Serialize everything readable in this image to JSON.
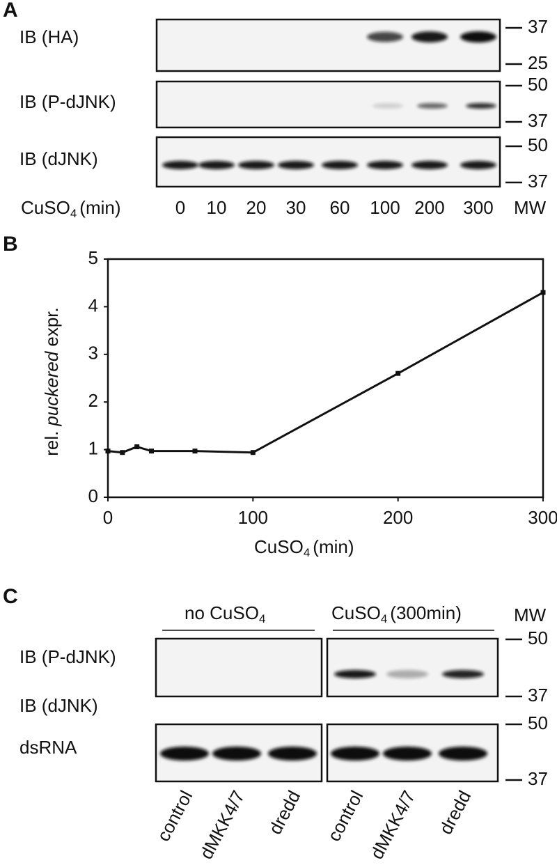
{
  "panel_a": {
    "letter": "A",
    "rows": [
      "IB (HA)",
      "IB (P-dJNK)",
      "IB (dJNK)"
    ],
    "x_label": [
      "CuSO",
      "4",
      "(min)"
    ],
    "lanes": [
      "0",
      "10",
      "20",
      "30",
      "60",
      "100",
      "200",
      "300"
    ],
    "mw_label": "MW",
    "mw_markers": [
      [
        "37",
        "25"
      ],
      [
        "50",
        "37"
      ],
      [
        "50",
        "37"
      ]
    ]
  },
  "chart_data": {
    "type": "line",
    "letter": "B",
    "x_label": [
      "CuSO",
      "4",
      "(min)"
    ],
    "y_label": [
      "rel.",
      "puckered",
      "expr."
    ],
    "x": [
      0,
      10,
      20,
      30,
      60,
      100,
      200,
      300
    ],
    "values": [
      0.97,
      0.94,
      1.06,
      0.97,
      0.97,
      0.94,
      2.6,
      4.3
    ],
    "color": "#111111",
    "xlim": [
      0,
      300
    ],
    "ylim": [
      0,
      5
    ],
    "xticks": [
      0,
      100,
      200,
      300
    ],
    "yticks": [
      0,
      1,
      2,
      3,
      4,
      5
    ]
  },
  "panel_c": {
    "letter": "C",
    "groups": [
      [
        "no CuSO",
        "4"
      ],
      [
        "CuSO",
        "4",
        "(300min)"
      ]
    ],
    "mw_label": "MW",
    "rows": [
      "IB (P-dJNK)",
      "IB (dJNK)",
      "dsRNA"
    ],
    "lanes": [
      "control",
      "dMKK4/7",
      "dredd"
    ],
    "mw_markers": [
      [
        "50",
        "37"
      ],
      [
        "50",
        "37"
      ]
    ]
  }
}
